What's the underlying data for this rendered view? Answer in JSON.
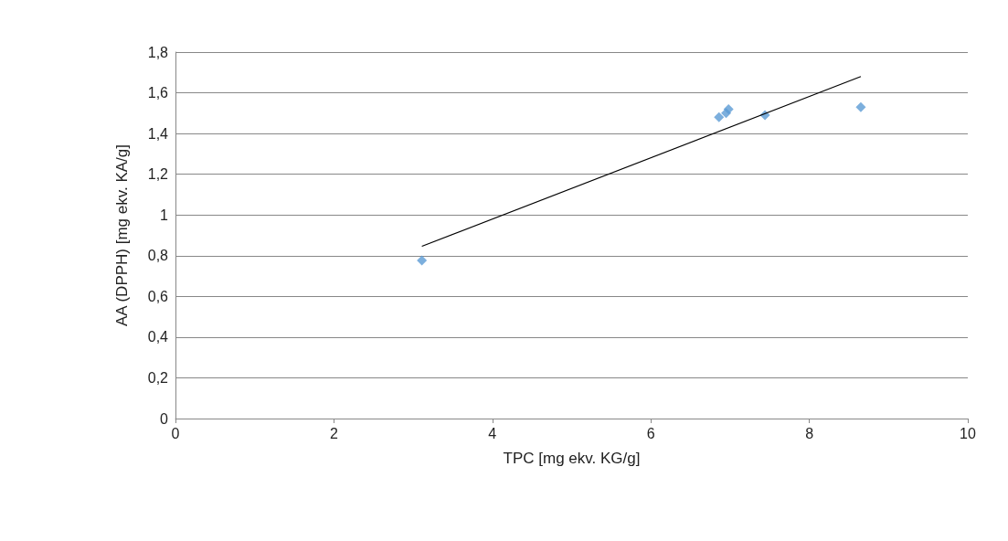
{
  "chart_data": {
    "type": "scatter",
    "xlabel": "TPC [mg ekv. KG/g]",
    "ylabel": "AA (DPPH) [mg ekv. KA/g]",
    "xlim": [
      0,
      10
    ],
    "xticks": [
      0,
      2,
      4,
      6,
      8,
      10
    ],
    "ylim": [
      0,
      1.8
    ],
    "yticks": [
      0,
      {
        "value": 0.2,
        "label": "0,2"
      },
      {
        "value": 0.4,
        "label": "0,4"
      },
      {
        "value": 0.6,
        "label": "0,6"
      },
      {
        "value": 0.8,
        "label": "0,8"
      },
      1,
      {
        "value": 1.2,
        "label": "1,2"
      },
      {
        "value": 1.4,
        "label": "1,4"
      },
      {
        "value": 1.6,
        "label": "1,6"
      },
      {
        "value": 1.8,
        "label": "1,8"
      }
    ],
    "grid": "y",
    "marker": "diamond",
    "series": [
      {
        "color": "#5b9bd5",
        "x": [
          3.11,
          6.86,
          6.95,
          6.98,
          7.44,
          8.65
        ],
        "values": [
          0.777,
          1.48,
          1.5,
          1.52,
          1.49,
          1.53
        ]
      },
      {
        "type": "line",
        "color": "#000000",
        "marker": "none",
        "line_style": "solid",
        "x": [
          3.11,
          8.65
        ],
        "values": [
          0.846,
          1.68
        ]
      }
    ]
  }
}
